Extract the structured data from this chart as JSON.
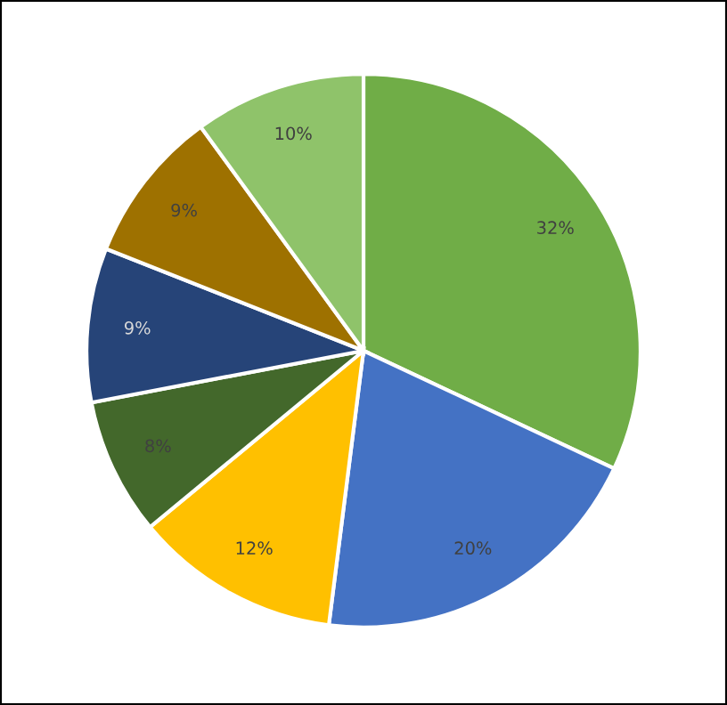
{
  "chart_data": {
    "type": "pie",
    "categories": [
      null,
      null,
      null,
      null,
      null,
      null,
      null
    ],
    "values": [
      32,
      20,
      12,
      8,
      9,
      9,
      10
    ],
    "value_labels": [
      "32%",
      "20%",
      "12%",
      "8%",
      "9%",
      "9%",
      "10%"
    ],
    "colors": [
      "#70ad47",
      "#4472c4",
      "#ffc000",
      "#43682b",
      "#264478",
      "#9e7100",
      "#8fc36a"
    ],
    "legend": false
  }
}
